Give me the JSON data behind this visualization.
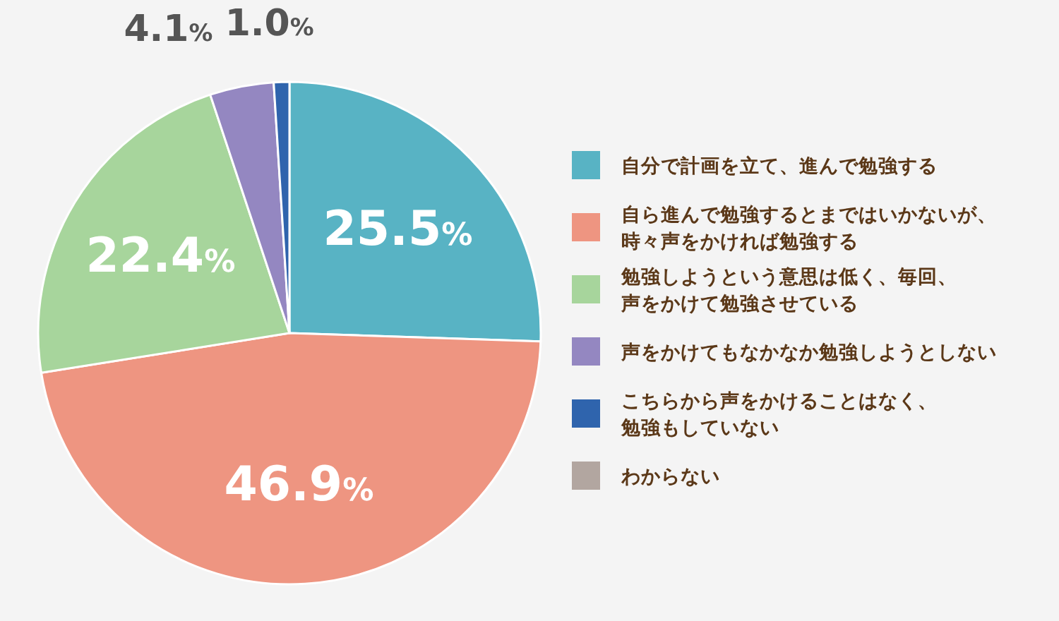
{
  "chart_data": {
    "type": "pie",
    "categories": [
      "自分で計画を立て、進んで勉強する",
      "自ら進んで勉強するとまではいかないが、時々声をかければ勉強する",
      "勉強しようという意思は低く、毎回、声をかけて勉強させている",
      "声をかけてもなかなか勉強しようとしない",
      "こちらから声をかけることはなく、勉強もしていない",
      "わからない"
    ],
    "values": [
      25.5,
      46.9,
      22.4,
      4.1,
      1.0,
      0
    ],
    "value_labels": [
      "25.5%",
      "46.9%",
      "22.4%",
      "4.1%",
      "1.0%",
      null
    ],
    "colors": [
      "#58b3c4",
      "#ee9581",
      "#a7d59c",
      "#9487c1",
      "#2f64ad",
      "#b2a6a0"
    ],
    "legend": "right"
  }
}
